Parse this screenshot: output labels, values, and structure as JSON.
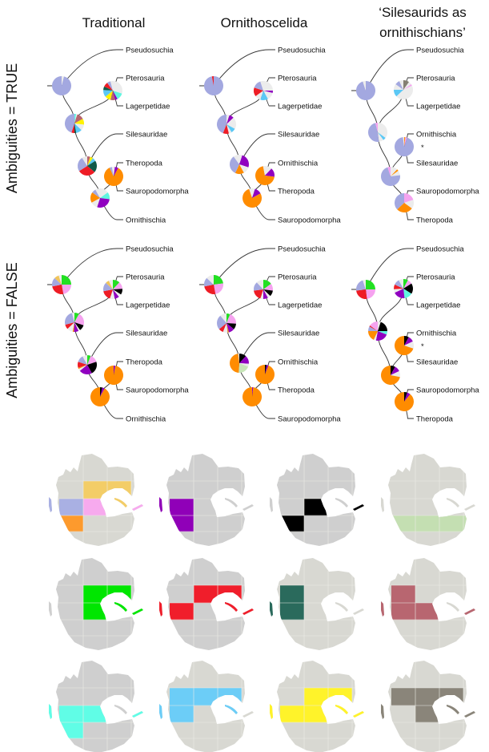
{
  "column_titles": [
    {
      "lines": [
        "Traditional"
      ]
    },
    {
      "lines": [
        "Ornithoscelida"
      ]
    },
    {
      "lines": [
        "‘Silesaurids as",
        "ornithischians’"
      ]
    }
  ],
  "row_labels": [
    "Ambiguities = TRUE",
    "Ambiguities = FALSE"
  ],
  "palette": {
    "lav": "#a3a8e0",
    "lg": "#ececec",
    "red": "#ee1c25",
    "teal": "#0f5a48",
    "yel": "#fff200",
    "cyan": "#5ff5e0",
    "sky": "#5bc8f5",
    "org": "#ff8c00",
    "pur": "#9000c0",
    "pink": "#f5a3ef",
    "grn": "#22e022",
    "blk": "#000000",
    "rose": "#b8646e",
    "tan": "#f1c55a",
    "gry": "#847f72",
    "lgrn": "#c8e6b8"
  },
  "trees": [
    {
      "topology": "traditional",
      "row": 0,
      "col": 0,
      "taxa": [
        "Pseudosuchia",
        "Pterosauria",
        "Lagerpetidae",
        "Silesauridae",
        "Theropoda",
        "Sauropodomorpha",
        "Ornithischia"
      ],
      "pies": {
        "root": [
          [
            "lg",
            0.04
          ],
          [
            "lav",
            0.96
          ]
        ],
        "n1": [
          [
            "lg",
            0.3
          ],
          [
            "cyan",
            0.12
          ],
          [
            "pur",
            0.04
          ],
          [
            "rose",
            0.08
          ],
          [
            "yel",
            0.1
          ],
          [
            "sky",
            0.12
          ],
          [
            "teal",
            0.06
          ],
          [
            "red",
            0.08
          ],
          [
            "lav",
            0.06
          ],
          [
            "lg",
            0.04
          ]
        ],
        "n2": [
          [
            "cyan",
            0.03
          ],
          [
            "lg",
            0.02
          ],
          [
            "rose",
            0.12
          ],
          [
            "yel",
            0.1
          ],
          [
            "lg",
            0.1
          ],
          [
            "sky",
            0.1
          ],
          [
            "teal",
            0.03
          ],
          [
            "red",
            0.05
          ],
          [
            "lav",
            0.45
          ]
        ],
        "n3": [
          [
            "rose",
            0.05
          ],
          [
            "yel",
            0.05
          ],
          [
            "sky",
            0.06
          ],
          [
            "teal",
            0.2
          ],
          [
            "red",
            0.3
          ],
          [
            "lav",
            0.25
          ],
          [
            "lg",
            0.09
          ]
        ],
        "n4": [
          [
            "lg",
            0.02
          ],
          [
            "pur",
            0.06
          ],
          [
            "org",
            0.85
          ],
          [
            "lav",
            0.04
          ],
          [
            "lg",
            0.03
          ]
        ],
        "n5": [
          [
            "lg",
            0.15
          ],
          [
            "cyan",
            0.12
          ],
          [
            "pur",
            0.28
          ],
          [
            "lg",
            0.12
          ],
          [
            "org",
            0.18
          ],
          [
            "lav",
            0.07
          ],
          [
            "lg",
            0.08
          ]
        ]
      }
    },
    {
      "topology": "ornithoscelida",
      "row": 0,
      "col": 1,
      "taxa": [
        "Pseudosuchia",
        "Pterosauria",
        "Lagerpetidae",
        "Silesauridae",
        "Ornithischia",
        "Theropoda",
        "Sauropodomorpha"
      ],
      "pies": {
        "root": [
          [
            "lav",
            0.97
          ],
          [
            "red",
            0.03
          ]
        ],
        "n1": [
          [
            "lg",
            0.25
          ],
          [
            "pur",
            0.04
          ],
          [
            "lg",
            0.13
          ],
          [
            "sky",
            0.13
          ],
          [
            "lg",
            0.1
          ],
          [
            "red",
            0.15
          ],
          [
            "lav",
            0.15
          ],
          [
            "lg",
            0.05
          ]
        ],
        "n2": [
          [
            "lg",
            0.05
          ],
          [
            "pur",
            0.08
          ],
          [
            "lg",
            0.2
          ],
          [
            "sky",
            0.08
          ],
          [
            "lg",
            0.05
          ],
          [
            "red",
            0.1
          ],
          [
            "lav",
            0.44
          ]
        ],
        "n3": [
          [
            "lg",
            0.05
          ],
          [
            "pur",
            0.25
          ],
          [
            "lg",
            0.12
          ],
          [
            "org",
            0.15
          ],
          [
            "lav",
            0.33
          ],
          [
            "lg",
            0.1
          ]
        ],
        "n4": [
          [
            "lg",
            0.12
          ],
          [
            "pur",
            0.15
          ],
          [
            "org",
            0.7
          ],
          [
            "lg",
            0.03
          ]
        ],
        "n5": [
          [
            "lg",
            0.05
          ],
          [
            "pur",
            0.12
          ],
          [
            "org",
            0.78
          ],
          [
            "lg",
            0.05
          ]
        ]
      }
    },
    {
      "topology": "silesaurids",
      "row": 0,
      "col": 2,
      "taxa": [
        "Pseudosuchia",
        "Pterosauria",
        "Lagerpetidae",
        "Ornithischia",
        "Silesauridae",
        "Sauropodomorpha",
        "Theropoda"
      ],
      "asterisk": "*",
      "pies": {
        "root": [
          [
            "lav",
            0.95
          ],
          [
            "lg",
            0.05
          ]
        ],
        "n1": [
          [
            "gry",
            0.1
          ],
          [
            "lg",
            0.05
          ],
          [
            "pink",
            0.03
          ],
          [
            "lg",
            0.45
          ],
          [
            "sky",
            0.12
          ],
          [
            "lg",
            0.1
          ],
          [
            "lav",
            0.08
          ],
          [
            "lg",
            0.07
          ]
        ],
        "n2": [
          [
            "lg",
            0.35
          ],
          [
            "sky",
            0.05
          ],
          [
            "lg",
            0.08
          ],
          [
            "lav",
            0.48
          ],
          [
            "pink",
            0.04
          ]
        ],
        "na": [
          [
            "org",
            0.02
          ],
          [
            "pink",
            0.03
          ],
          [
            "lav",
            0.93
          ],
          [
            "lg",
            0.02
          ]
        ],
        "n3": [
          [
            "lg",
            0.12
          ],
          [
            "org",
            0.03
          ],
          [
            "lg",
            0.08
          ],
          [
            "lav",
            0.72
          ],
          [
            "pink",
            0.05
          ]
        ],
        "nb": [
          [
            "pink",
            0.2
          ],
          [
            "lg",
            0.15
          ],
          [
            "org",
            0.28
          ],
          [
            "lav",
            0.37
          ]
        ]
      }
    },
    {
      "topology": "traditional",
      "row": 1,
      "col": 0,
      "taxa": [
        "Pseudosuchia",
        "Pterosauria",
        "Lagerpetidae",
        "Silesauridae",
        "Theropoda",
        "Sauropodomorpha",
        "Ornithischia"
      ],
      "pies": {
        "root": [
          [
            "grn",
            0.25
          ],
          [
            "pink",
            0.22
          ],
          [
            "red",
            0.25
          ],
          [
            "lav",
            0.15
          ],
          [
            "tan",
            0.08
          ],
          [
            "lg",
            0.05
          ]
        ],
        "n1": [
          [
            "grn",
            0.12
          ],
          [
            "pink",
            0.12
          ],
          [
            "blk",
            0.1
          ],
          [
            "lg",
            0.05
          ],
          [
            "pur",
            0.08
          ],
          [
            "lg",
            0.08
          ],
          [
            "red",
            0.17
          ],
          [
            "lav",
            0.15
          ],
          [
            "tan",
            0.06
          ],
          [
            "lg",
            0.07
          ]
        ],
        "n2": [
          [
            "grn",
            0.08
          ],
          [
            "pink",
            0.22
          ],
          [
            "blk",
            0.1
          ],
          [
            "lg",
            0.03
          ],
          [
            "pur",
            0.08
          ],
          [
            "org",
            0.02
          ],
          [
            "lg",
            0.1
          ],
          [
            "red",
            0.08
          ],
          [
            "lav",
            0.25
          ],
          [
            "lg",
            0.04
          ]
        ],
        "n3": [
          [
            "grn",
            0.06
          ],
          [
            "pink",
            0.14
          ],
          [
            "blk",
            0.22
          ],
          [
            "pur",
            0.22
          ],
          [
            "lg",
            0.04
          ],
          [
            "org",
            0.02
          ],
          [
            "red",
            0.1
          ],
          [
            "lav",
            0.12
          ],
          [
            "lg",
            0.08
          ]
        ],
        "n4": [
          [
            "pur",
            0.03
          ],
          [
            "org",
            0.97
          ]
        ],
        "n5": [
          [
            "blk",
            0.04
          ],
          [
            "pur",
            0.04
          ],
          [
            "org",
            0.92
          ]
        ]
      }
    },
    {
      "topology": "ornithoscelida",
      "row": 1,
      "col": 1,
      "taxa": [
        "Pseudosuchia",
        "Pterosauria",
        "Lagerpetidae",
        "Silesauridae",
        "Ornithischia",
        "Theropoda",
        "Sauropodomorpha"
      ],
      "pies": {
        "root": [
          [
            "grn",
            0.23
          ],
          [
            "pink",
            0.24
          ],
          [
            "red",
            0.25
          ],
          [
            "lav",
            0.15
          ],
          [
            "lg",
            0.13
          ]
        ],
        "n1": [
          [
            "grn",
            0.15
          ],
          [
            "pink",
            0.12
          ],
          [
            "blk",
            0.1
          ],
          [
            "lg",
            0.05
          ],
          [
            "pur",
            0.08
          ],
          [
            "lg",
            0.05
          ],
          [
            "red",
            0.18
          ],
          [
            "lav",
            0.15
          ],
          [
            "lg",
            0.12
          ]
        ],
        "n2": [
          [
            "grn",
            0.06
          ],
          [
            "pink",
            0.2
          ],
          [
            "blk",
            0.1
          ],
          [
            "pur",
            0.1
          ],
          [
            "org",
            0.02
          ],
          [
            "lg",
            0.08
          ],
          [
            "red",
            0.08
          ],
          [
            "lav",
            0.25
          ],
          [
            "lg",
            0.11
          ]
        ],
        "n3": [
          [
            "blk",
            0.12
          ],
          [
            "pur",
            0.14
          ],
          [
            "lg",
            0.05
          ],
          [
            "lgrn",
            0.2
          ],
          [
            "org",
            0.47
          ],
          [
            "lg",
            0.02
          ]
        ],
        "n4": [
          [
            "blk",
            0.03
          ],
          [
            "pur",
            0.03
          ],
          [
            "org",
            0.94
          ]
        ],
        "n5": [
          [
            "pur",
            0.02
          ],
          [
            "org",
            0.98
          ]
        ]
      }
    },
    {
      "topology": "silesaurids",
      "row": 1,
      "col": 2,
      "taxa": [
        "Pseudosuchia",
        "Pterosauria",
        "Lagerpetidae",
        "Ornithischia",
        "Silesauridae",
        "Sauropodomorpha",
        "Theropoda"
      ],
      "asterisk": "*",
      "pies": {
        "root": [
          [
            "grn",
            0.25
          ],
          [
            "pink",
            0.23
          ],
          [
            "red",
            0.25
          ],
          [
            "lav",
            0.22
          ],
          [
            "lg",
            0.05
          ]
        ],
        "n1": [
          [
            "grn",
            0.08
          ],
          [
            "pink",
            0.08
          ],
          [
            "blk",
            0.18
          ],
          [
            "cyan",
            0.14
          ],
          [
            "pur",
            0.2
          ],
          [
            "lg",
            0.06
          ],
          [
            "red",
            0.08
          ],
          [
            "lav",
            0.1
          ],
          [
            "lg",
            0.08
          ]
        ],
        "n2": [
          [
            "lg",
            0.05
          ],
          [
            "blk",
            0.2
          ],
          [
            "cyan",
            0.06
          ],
          [
            "pur",
            0.22
          ],
          [
            "lg",
            0.04
          ],
          [
            "org",
            0.18
          ],
          [
            "lav",
            0.08
          ],
          [
            "red",
            0.02
          ],
          [
            "pink",
            0.15
          ]
        ],
        "na": [
          [
            "blk",
            0.08
          ],
          [
            "pur",
            0.1
          ],
          [
            "lg",
            0.12
          ],
          [
            "org",
            0.7
          ]
        ],
        "n3": [
          [
            "blk",
            0.08
          ],
          [
            "pur",
            0.1
          ],
          [
            "lg",
            0.1
          ],
          [
            "org",
            0.72
          ]
        ],
        "nb": [
          [
            "blk",
            0.05
          ],
          [
            "pur",
            0.06
          ],
          [
            "org",
            0.89
          ]
        ]
      }
    }
  ],
  "land_colors": {
    "cool": "#cfcfcf",
    "warm": "#d8d8d2"
  },
  "maps": [
    {
      "land": "warm",
      "regions": [
        {
          "color": "#f3cd67",
          "cells": [
            "B1",
            "C1"
          ],
          "islands": [
            "cimm"
          ]
        },
        {
          "color": "#a9b0e3",
          "cells": [
            "A2"
          ],
          "islands": [
            "west"
          ]
        },
        {
          "color": "#f7aaee",
          "cells": [
            "B2"
          ],
          "islands": [
            "east"
          ]
        },
        {
          "color": "#fd9a2d",
          "cells": [
            "A3"
          ],
          "islands": []
        }
      ]
    },
    {
      "land": "cool",
      "regions": [
        {
          "color": "#9000b8",
          "cells": [
            "A2",
            "A3"
          ],
          "islands": [
            "west"
          ]
        }
      ]
    },
    {
      "land": "cool",
      "regions": [
        {
          "color": "#000000",
          "cells": [
            "B2",
            "A3"
          ],
          "islands": [
            "east"
          ]
        }
      ]
    },
    {
      "land": "warm",
      "regions": [
        {
          "color": "#c4dfb2",
          "cells": [
            "A3",
            "B3",
            "C3",
            "D3"
          ],
          "islands": []
        }
      ]
    },
    {
      "land": "cool",
      "regions": [
        {
          "color": "#00e600",
          "cells": [
            "B1",
            "C1",
            "B2"
          ],
          "islands": [
            "cimm",
            "east"
          ]
        }
      ]
    },
    {
      "land": "cool",
      "regions": [
        {
          "color": "#f01e2b",
          "cells": [
            "B1",
            "C1",
            "A2"
          ],
          "islands": [
            "west",
            "cimm",
            "east"
          ]
        }
      ]
    },
    {
      "land": "warm",
      "regions": [
        {
          "color": "#2a6a5c",
          "cells": [
            "A1",
            "A2"
          ],
          "islands": [
            "west"
          ]
        }
      ]
    },
    {
      "land": "warm",
      "regions": [
        {
          "color": "#b86670",
          "cells": [
            "A1",
            "A2",
            "B2"
          ],
          "islands": [
            "west",
            "east"
          ]
        }
      ]
    },
    {
      "land": "cool",
      "regions": [
        {
          "color": "#60fde6",
          "cells": [
            "A2",
            "B2",
            "A3"
          ],
          "islands": [
            "west",
            "east"
          ]
        }
      ]
    },
    {
      "land": "warm",
      "regions": [
        {
          "color": "#6ccdf7",
          "cells": [
            "A1",
            "B1",
            "C1",
            "A2"
          ],
          "islands": [
            "west",
            "cimm"
          ]
        }
      ]
    },
    {
      "land": "warm",
      "regions": [
        {
          "color": "#fff32a",
          "cells": [
            "B1",
            "C1",
            "A2",
            "B2"
          ],
          "islands": [
            "west",
            "cimm",
            "east"
          ]
        }
      ]
    },
    {
      "land": "warm",
      "regions": [
        {
          "color": "#8a857a",
          "cells": [
            "A1",
            "B1",
            "C1",
            "B2"
          ],
          "islands": [
            "west",
            "cimm",
            "east"
          ]
        }
      ]
    }
  ]
}
